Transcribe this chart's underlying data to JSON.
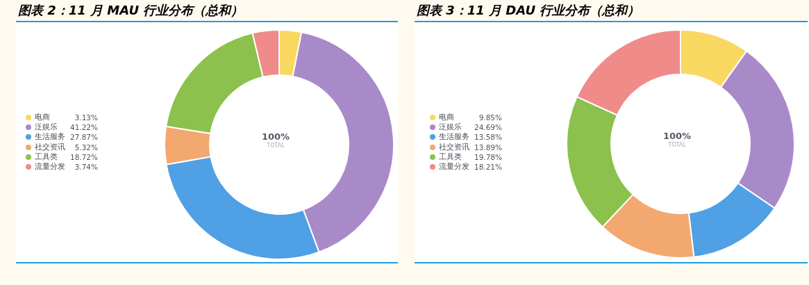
{
  "chart_data": [
    {
      "type": "donut",
      "title": "图表 2：11 月 MAU 行业分布（总和）",
      "categories": [
        "电商",
        "泛娱乐",
        "生活服务",
        "社交资讯",
        "工具类",
        "流量分发"
      ],
      "values": [
        3.13,
        41.22,
        27.87,
        5.32,
        18.72,
        3.74
      ],
      "value_labels": [
        "3.13%",
        "41.22%",
        "27.87%",
        "5.32%",
        "18.72%",
        "3.74%"
      ],
      "colors": [
        "#f9d862",
        "#a98ac9",
        "#4fa0e4",
        "#f3a870",
        "#8bc14c",
        "#ef8b89"
      ],
      "legend": "left",
      "annotations": [
        "100%",
        "TOTAL"
      ]
    },
    {
      "type": "donut",
      "title": "图表 3：11 月 DAU 行业分布（总和）",
      "categories": [
        "电商",
        "泛娱乐",
        "生活服务",
        "社交资讯",
        "工具类",
        "流量分发"
      ],
      "values": [
        9.85,
        24.69,
        13.58,
        13.89,
        19.78,
        18.21
      ],
      "value_labels": [
        "9.85%",
        "24.69%",
        "13.58%",
        "13.89%",
        "19.78%",
        "18.21%"
      ],
      "colors": [
        "#f9d862",
        "#a98ac9",
        "#4fa0e4",
        "#f3a870",
        "#8bc14c",
        "#ef8b89"
      ],
      "legend": "left",
      "annotations": [
        "100%",
        "TOTAL"
      ]
    }
  ]
}
